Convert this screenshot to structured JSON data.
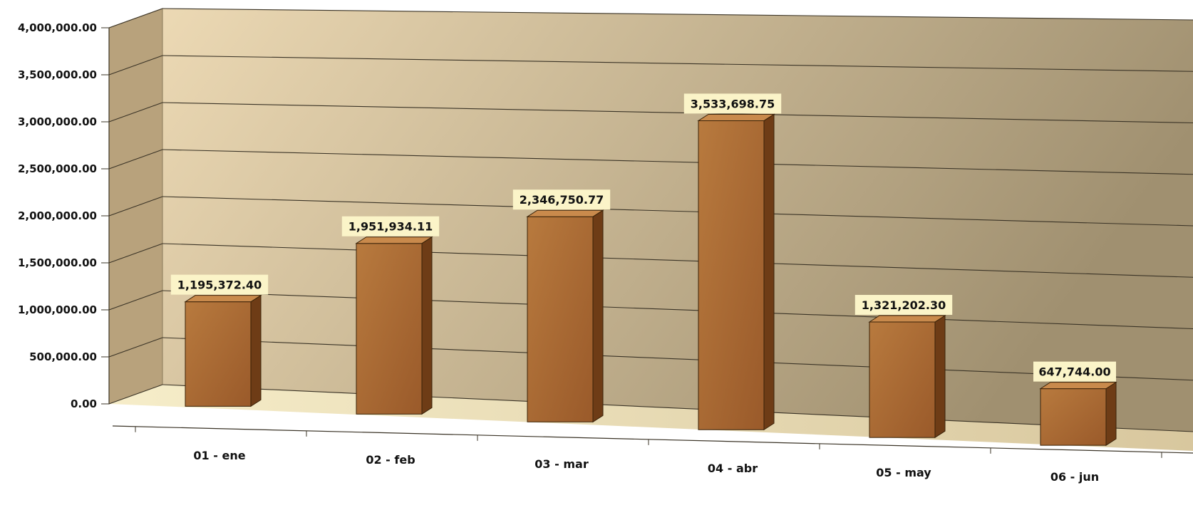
{
  "chart_data": {
    "type": "bar",
    "title": "",
    "xlabel": "",
    "ylabel": "",
    "categories": [
      "01 - ene",
      "02 - feb",
      "03 - mar",
      "04 - abr",
      "05 - may",
      "06 - jun"
    ],
    "values": [
      1195372.4,
      1951934.11,
      2346750.77,
      3533698.75,
      1321202.3,
      647744.0
    ],
    "value_labels": [
      "1,195,372.40",
      "1,951,934.11",
      "2,346,750.77",
      "3,533,698.75",
      "1,321,202.30",
      "647,744.00"
    ],
    "ylim": [
      0,
      4000000
    ],
    "yticks": [
      0,
      500000,
      1000000,
      1500000,
      2000000,
      2500000,
      3000000,
      3500000,
      4000000
    ],
    "ytick_labels": [
      "0.00",
      "500,000.00",
      "1,000,000.00",
      "1,500,000.00",
      "2,000,000.00",
      "2,500,000.00",
      "3,000,000.00",
      "3,500,000.00",
      "4,000,000.00"
    ],
    "grid": true,
    "legend": "none",
    "style": "3d-perspective",
    "colors": {
      "bar_front": "#9a5a2a",
      "bar_highlight": "#b87a3e",
      "bar_side": "#6e3c16",
      "bar_top": "#c98a4c",
      "wall_light": "#ecd9b4",
      "wall_dark": "#a09070",
      "side_wall": "#b8a27c",
      "floor": "#f2e6c0",
      "label_bg": "#fbf4c8"
    }
  }
}
